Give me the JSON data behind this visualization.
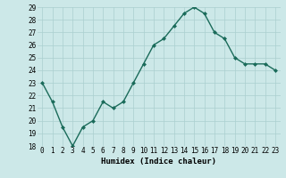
{
  "x": [
    0,
    1,
    2,
    3,
    4,
    5,
    6,
    7,
    8,
    9,
    10,
    11,
    12,
    13,
    14,
    15,
    16,
    17,
    18,
    19,
    20,
    21,
    22,
    23
  ],
  "y": [
    23,
    21.5,
    19.5,
    18,
    19.5,
    20,
    21.5,
    21,
    21.5,
    23,
    24.5,
    26,
    26.5,
    27.5,
    28.5,
    29,
    28.5,
    27,
    26.5,
    25,
    24.5,
    24.5,
    24.5,
    24
  ],
  "xlabel": "Humidex (Indice chaleur)",
  "ylim": [
    18,
    29
  ],
  "xlim_left": -0.5,
  "xlim_right": 23.5,
  "yticks": [
    18,
    19,
    20,
    21,
    22,
    23,
    24,
    25,
    26,
    27,
    28,
    29
  ],
  "xtick_labels": [
    "0",
    "1",
    "2",
    "3",
    "4",
    "5",
    "6",
    "7",
    "8",
    "9",
    "10",
    "11",
    "12",
    "13",
    "14",
    "15",
    "16",
    "17",
    "18",
    "19",
    "20",
    "21",
    "22",
    "23"
  ],
  "line_color": "#1a6b5a",
  "marker": "D",
  "marker_size": 2.0,
  "bg_color": "#cce8e8",
  "grid_color": "#aacfcf",
  "line_width": 1.0,
  "tick_fontsize": 5.5,
  "xlabel_fontsize": 6.5
}
